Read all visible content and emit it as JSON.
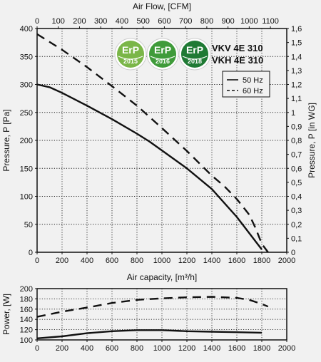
{
  "chart_data": [
    {
      "type": "line",
      "name_hint": "pressure",
      "xlabel": "Air capacity, [m³/h]",
      "ylabel": "Pressure, P [Pa]",
      "y2label": "Pressure, P [in WG]",
      "x2label": "Air Flow, [CFM]",
      "xlim": [
        0,
        2000
      ],
      "ylim": [
        0,
        400
      ],
      "x2lim": [
        0,
        1177
      ],
      "y2lim": [
        0,
        1.6
      ],
      "x_ticks": [
        "0",
        "200",
        "400",
        "600",
        "800",
        "1000",
        "1200",
        "1400",
        "1600",
        "1800",
        "2000"
      ],
      "y_ticks": [
        "0",
        "50",
        "100",
        "150",
        "200",
        "250",
        "300",
        "350",
        "400"
      ],
      "x2_ticks": [
        "0",
        "100",
        "200",
        "300",
        "400",
        "500",
        "600",
        "700",
        "800",
        "900",
        "1000",
        "1100"
      ],
      "y2_ticks": [
        "0",
        "0,1",
        "0,2",
        "0,3",
        "0,4",
        "0,5",
        "0,6",
        "0,7",
        "0,8",
        "0,9",
        "1",
        "1,1",
        "1,2",
        "1,3",
        "1,4",
        "1,5",
        "1,6"
      ],
      "grid": true,
      "legend": "top-right",
      "series": [
        {
          "name": "50 Hz",
          "style": "solid",
          "x": [
            0,
            100,
            200,
            400,
            600,
            800,
            900,
            1000,
            1200,
            1400,
            1600,
            1800
          ],
          "y": [
            300,
            295,
            285,
            262,
            238,
            212,
            198,
            182,
            150,
            113,
            63,
            5
          ]
        },
        {
          "name": "60 Hz",
          "style": "dashed",
          "x": [
            0,
            200,
            400,
            600,
            800,
            1000,
            1200,
            1400,
            1500,
            1600,
            1700,
            1750,
            1800,
            1850
          ],
          "y": [
            390,
            362,
            331,
            297,
            262,
            222,
            181,
            137,
            118,
            95,
            67,
            43,
            15,
            0
          ]
        }
      ],
      "badges": [
        {
          "label": "ErP",
          "year": "2015",
          "color": "#7ab648"
        },
        {
          "label": "ErP",
          "year": "2016",
          "color": "#3f9b3a"
        },
        {
          "label": "ErP",
          "year": "2018",
          "color": "#1f7a34"
        }
      ],
      "models": [
        "VKV 4E 310",
        "VKH 4E 310"
      ]
    },
    {
      "type": "line",
      "name_hint": "power",
      "xlabel": "",
      "ylabel": "Power, [W]",
      "xlim": [
        0,
        2000
      ],
      "ylim": [
        100,
        200
      ],
      "x_ticks": [
        "0",
        "200",
        "400",
        "600",
        "800",
        "1000",
        "1200",
        "1400",
        "1600",
        "1800",
        "2000"
      ],
      "y_ticks": [
        "100",
        "120",
        "140",
        "160",
        "180",
        "200"
      ],
      "grid": true,
      "series": [
        {
          "name": "50 Hz",
          "style": "solid",
          "x": [
            0,
            200,
            400,
            600,
            800,
            1000,
            1200,
            1400,
            1600,
            1800
          ],
          "y": [
            103,
            107,
            113,
            117,
            119,
            119,
            117,
            116,
            115,
            114
          ]
        },
        {
          "name": "60 Hz",
          "style": "dashed",
          "x": [
            0,
            200,
            400,
            600,
            800,
            1000,
            1200,
            1400,
            1600,
            1700,
            1800,
            1850
          ],
          "y": [
            145,
            155,
            163,
            172,
            178,
            181,
            183,
            184,
            182,
            178,
            170,
            165
          ]
        }
      ]
    }
  ]
}
